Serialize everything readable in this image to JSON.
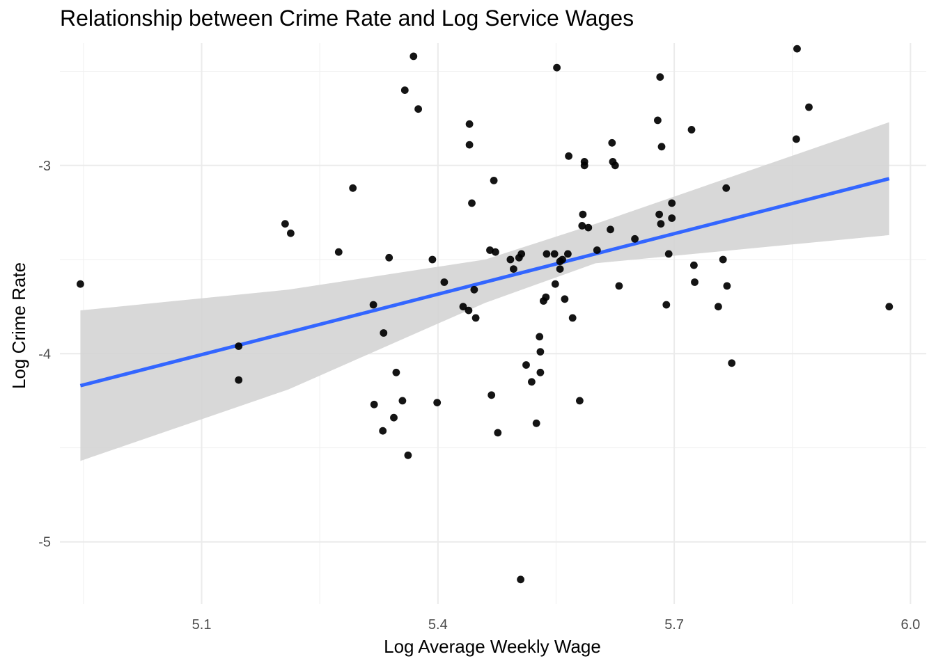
{
  "chart_data": {
    "type": "scatter",
    "title": "Relationship between Crime Rate and Log Service Wages",
    "xlabel": "Log Average Weekly Wage",
    "ylabel": "Log Crime Rate",
    "xlim": [
      4.92,
      6.02
    ],
    "ylim": [
      -5.33,
      -2.35
    ],
    "x_ticks": [
      5.1,
      5.4,
      5.7,
      6.0
    ],
    "x_tick_labels": [
      "5.1",
      "5.4",
      "5.7",
      "6.0"
    ],
    "y_ticks": [
      -3,
      -4,
      -5
    ],
    "y_tick_labels": [
      "-3",
      "-4",
      "-5"
    ],
    "grid": true,
    "series": [
      {
        "type": "points",
        "color": "#000000",
        "x": [
          4.946,
          5.147,
          5.147,
          5.206,
          5.213,
          5.274,
          5.292,
          5.318,
          5.319,
          5.33,
          5.331,
          5.338,
          5.344,
          5.347,
          5.355,
          5.358,
          5.362,
          5.369,
          5.375,
          5.393,
          5.399,
          5.408,
          5.432,
          5.439,
          5.44,
          5.44,
          5.443,
          5.446,
          5.448,
          5.466,
          5.468,
          5.471,
          5.473,
          5.476,
          5.492,
          5.496,
          5.503,
          5.505,
          5.506,
          5.512,
          5.519,
          5.525,
          5.529,
          5.53,
          5.53,
          5.534,
          5.537,
          5.538,
          5.548,
          5.549,
          5.551,
          5.555,
          5.555,
          5.558,
          5.561,
          5.565,
          5.566,
          5.571,
          5.58,
          5.583,
          5.584,
          5.586,
          5.586,
          5.591,
          5.602,
          5.619,
          5.621,
          5.622,
          5.625,
          5.63,
          5.65,
          5.679,
          5.681,
          5.682,
          5.683,
          5.684,
          5.69,
          5.693,
          5.697,
          5.697,
          5.722,
          5.725,
          5.726,
          5.756,
          5.762,
          5.766,
          5.767,
          5.773,
          5.855,
          5.856,
          5.871,
          5.973
        ],
        "y": [
          -3.63,
          -3.96,
          -4.14,
          -3.31,
          -3.36,
          -3.46,
          -3.12,
          -3.74,
          -4.27,
          -4.41,
          -3.89,
          -3.49,
          -4.34,
          -4.1,
          -4.25,
          -2.6,
          -4.54,
          -2.42,
          -2.7,
          -3.5,
          -4.26,
          -3.62,
          -3.75,
          -3.77,
          -2.78,
          -2.89,
          -3.2,
          -3.66,
          -3.81,
          -3.45,
          -4.22,
          -3.08,
          -3.46,
          -4.42,
          -3.5,
          -3.55,
          -3.49,
          -5.2,
          -3.47,
          -4.06,
          -4.15,
          -4.37,
          -3.91,
          -3.99,
          -4.1,
          -3.72,
          -3.7,
          -3.47,
          -3.47,
          -3.63,
          -2.48,
          -3.55,
          -3.51,
          -3.5,
          -3.71,
          -3.47,
          -2.95,
          -3.81,
          -4.25,
          -3.32,
          -3.26,
          -2.98,
          -3.0,
          -3.33,
          -3.45,
          -3.34,
          -2.88,
          -2.98,
          -3.0,
          -3.64,
          -3.39,
          -2.76,
          -3.26,
          -2.53,
          -3.31,
          -2.9,
          -3.74,
          -3.47,
          -3.2,
          -3.28,
          -2.81,
          -3.53,
          -3.62,
          -3.75,
          -3.5,
          -3.12,
          -3.64,
          -4.05,
          -2.86,
          -2.38,
          -2.69,
          -3.75
        ]
      },
      {
        "type": "regression",
        "color": "#3366FF",
        "x": [
          4.946,
          5.973
        ],
        "y": [
          -4.17,
          -3.07
        ],
        "ribbon_color": "#d4d4d4",
        "ribbon_x": [
          4.946,
          5.21,
          5.46,
          5.6,
          5.973
        ],
        "ribbon_lower": [
          -4.57,
          -4.19,
          -3.73,
          -3.52,
          -3.37
        ],
        "ribbon_upper": [
          -3.77,
          -3.66,
          -3.5,
          -3.31,
          -2.77
        ]
      }
    ]
  }
}
